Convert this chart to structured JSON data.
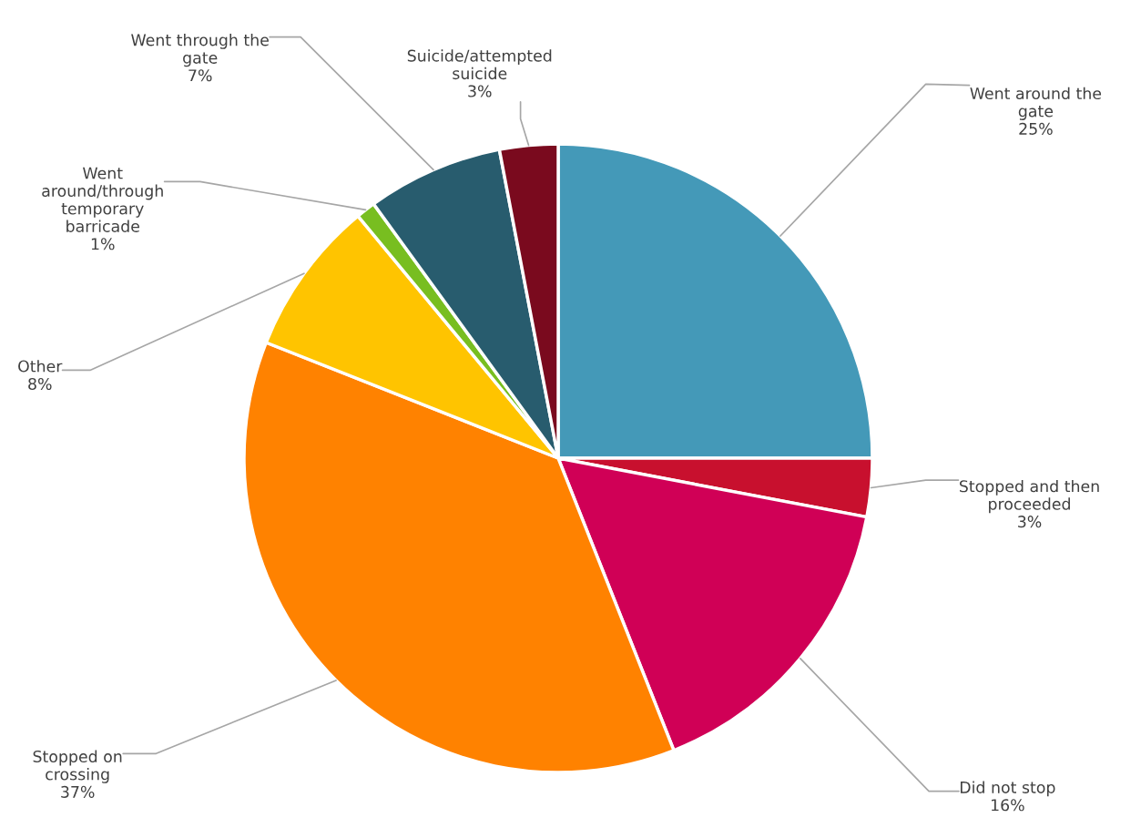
{
  "chart_data": {
    "type": "pie",
    "categories": [
      "Went around the\ngate",
      "Stopped and then\nproceeded",
      "Did not stop",
      "Stopped on\ncrossing",
      "Other",
      "Went\naround/through\ntemporary\nbarricade",
      "Went through the\ngate",
      "Suicide/attempted\nsuicide"
    ],
    "values": [
      25,
      3,
      16,
      37,
      8,
      1,
      7,
      3
    ],
    "colors": [
      "#4499b8",
      "#c8102e",
      "#d00056",
      "#ff8200",
      "#ffc400",
      "#78be20",
      "#285c6e",
      "#7a0a1e"
    ],
    "value_labels": [
      "25%",
      "3%",
      "16%",
      "37%",
      "8%",
      "1%",
      "7%",
      "3%"
    ]
  }
}
